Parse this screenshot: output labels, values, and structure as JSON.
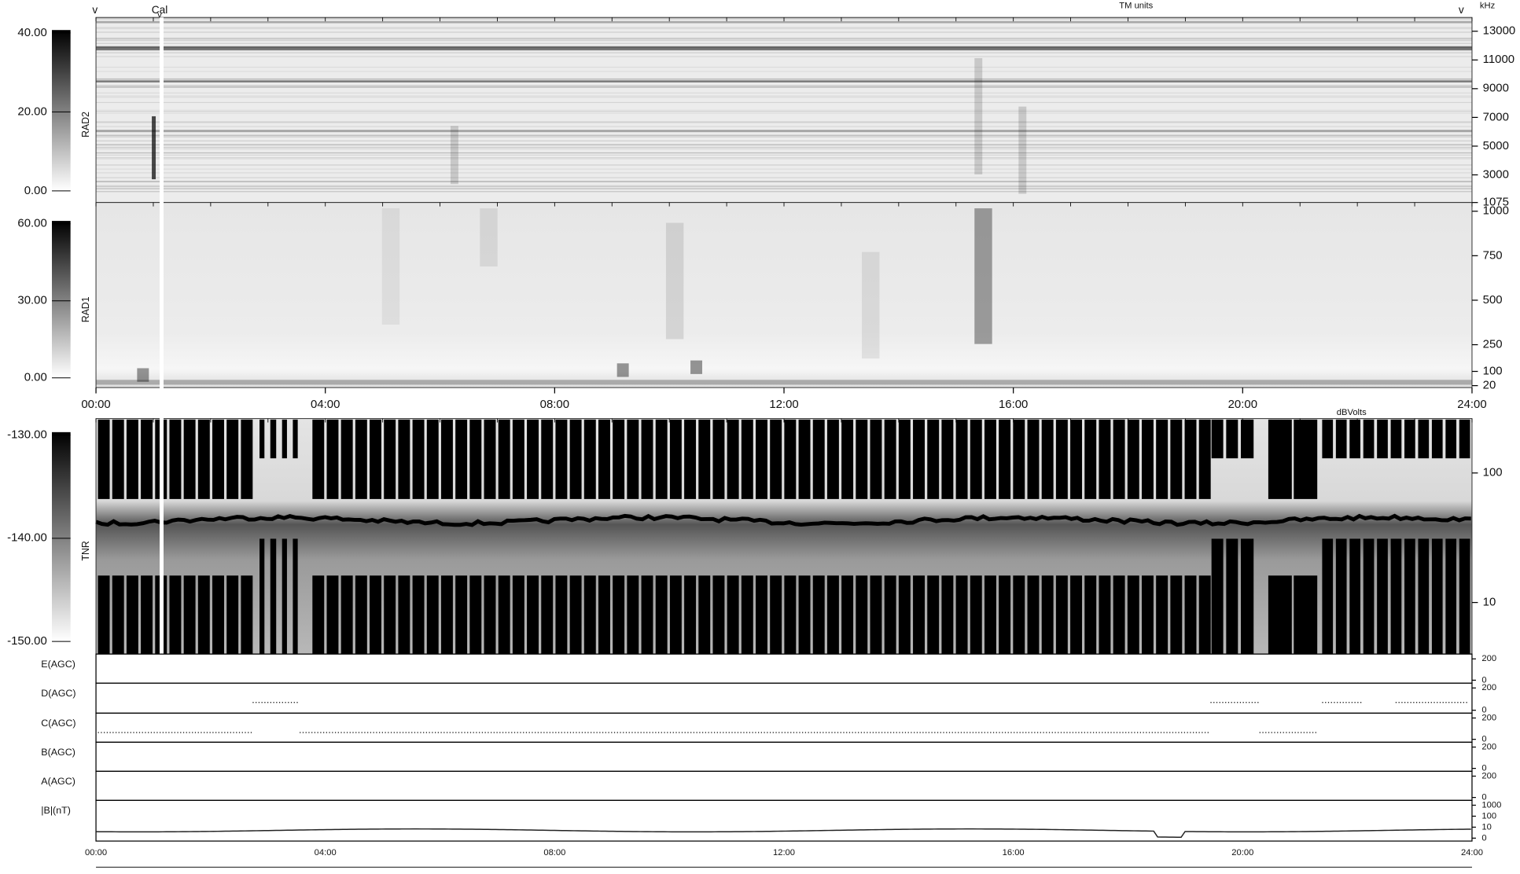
{
  "markers": {
    "left": "v",
    "cal_mark": "v",
    "right": "v",
    "cal": "Cal",
    "tm_units": "TM units",
    "freq_unit": "kHz",
    "tnr_unit": "dBVolts"
  },
  "panels": [
    {
      "label": "RAD2",
      "colorbar": {
        "lim": [
          0,
          40
        ],
        "ticks": [
          {
            "value": 40,
            "label": "40.00"
          },
          {
            "value": 20,
            "label": "20.00"
          },
          {
            "value": 0,
            "label": "0.00"
          }
        ]
      },
      "ylim": [
        1075,
        13960
      ],
      "yticks": [
        13000,
        11000,
        9000,
        7000,
        5000,
        3000,
        1075
      ]
    },
    {
      "label": "RAD1",
      "colorbar": {
        "lim": [
          0,
          60
        ],
        "ticks": [
          {
            "value": 60,
            "label": "60.00"
          },
          {
            "value": 30,
            "label": "30.00"
          },
          {
            "value": 0,
            "label": "0.00"
          }
        ]
      },
      "ylim": [
        9,
        1049
      ],
      "yticks": [
        1000,
        750,
        500,
        250,
        100,
        20
      ]
    },
    {
      "label": "TNR",
      "log": true,
      "colorbar": {
        "lim": [
          -150,
          -130
        ],
        "ticks": [
          {
            "value": -130,
            "label": "-130.00"
          },
          {
            "value": -140,
            "label": "-140.00"
          },
          {
            "value": -150,
            "label": "-150.00"
          }
        ]
      },
      "ylim": [
        4,
        263
      ],
      "yticks": [
        100,
        10
      ]
    }
  ],
  "lines": [
    {
      "label": "E(AGC)",
      "yticks": [
        200,
        0
      ]
    },
    {
      "label": "D(AGC)",
      "yticks": [
        200,
        0
      ]
    },
    {
      "label": "C(AGC)",
      "yticks": [
        200,
        0
      ]
    },
    {
      "label": "B(AGC)",
      "yticks": [
        200,
        0
      ]
    },
    {
      "label": "A(AGC)",
      "yticks": [
        200,
        0
      ]
    },
    {
      "label": "|B|(nT)",
      "yticks": [
        1000,
        100,
        10,
        0
      ]
    }
  ],
  "time_ticks": [
    "00:00",
    "04:00",
    "08:00",
    "12:00",
    "16:00",
    "20:00",
    "24:00"
  ]
}
